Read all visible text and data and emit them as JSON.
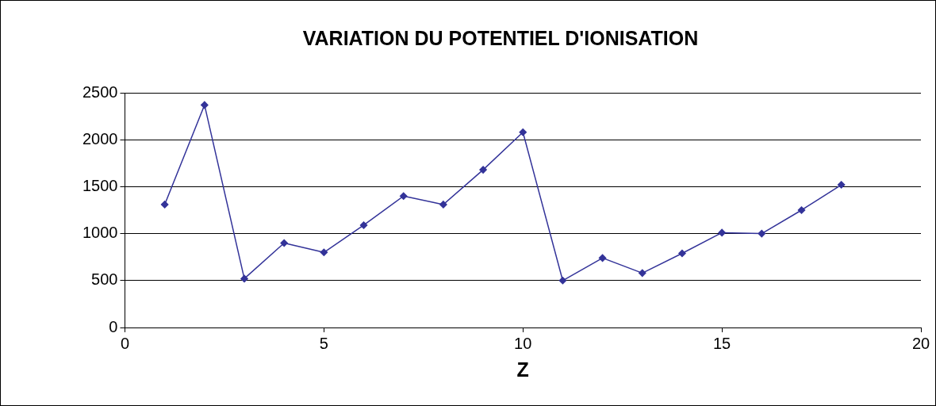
{
  "chart_data": {
    "type": "line",
    "title": "VARIATION DU POTENTIEL D'IONISATION",
    "xlabel": "Z",
    "x": [
      1,
      2,
      3,
      4,
      5,
      6,
      7,
      8,
      9,
      10,
      11,
      12,
      13,
      14,
      15,
      16,
      17,
      18
    ],
    "series": [
      {
        "color": "#333399",
        "values": [
          1310,
          2370,
          520,
          900,
          800,
          1090,
          1400,
          1310,
          1680,
          2080,
          500,
          740,
          580,
          790,
          1010,
          1000,
          1250,
          1520
        ]
      }
    ],
    "xlim": [
      0,
      20
    ],
    "xticks": [
      0,
      5,
      10,
      15,
      20
    ],
    "ylim": [
      0,
      2500
    ],
    "yticks": [
      0,
      500,
      1000,
      1500,
      2000,
      2500
    ],
    "grid": "y",
    "legend": false,
    "marker": "diamond",
    "line_style": "solid"
  }
}
